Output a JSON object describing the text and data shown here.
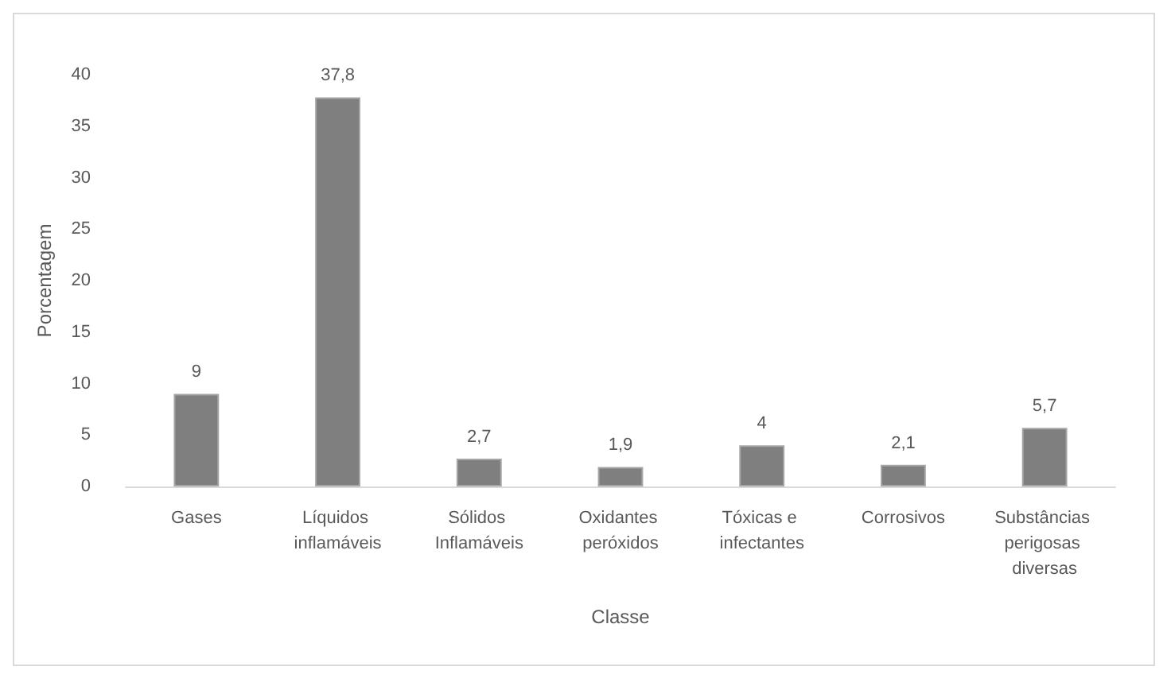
{
  "chart_data": {
    "type": "bar",
    "xlabel": "Classe",
    "ylabel": "Porcentagem",
    "categories": [
      "Gases",
      "Líquidos inflamáveis",
      "Sólidos Inflamáveis",
      "Oxidantes peróxidos",
      "Tóxicas e infectantes",
      "Corrosivos",
      "Substâncias perigosas diversas"
    ],
    "values": [
      9,
      37.8,
      2.7,
      1.9,
      4,
      2.1,
      5.7
    ],
    "value_labels": [
      "9",
      "37,8",
      "2,7",
      "1,9",
      "4",
      "2,1",
      "5,7"
    ],
    "color": "#7f7f7f",
    "ylim": [
      0,
      40
    ],
    "yticks": [
      0,
      5,
      10,
      15,
      20,
      25,
      30,
      35,
      40
    ]
  }
}
